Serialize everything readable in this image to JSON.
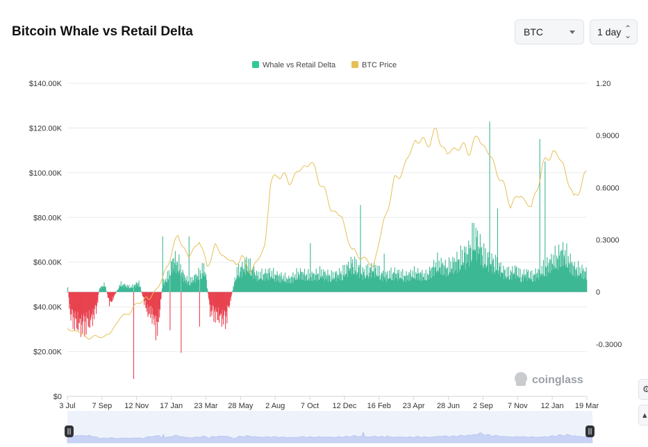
{
  "header": {
    "title": "Bitcoin Whale vs Retail Delta",
    "asset_select": "BTC",
    "interval_select": "1 day"
  },
  "watermark": "coinglass",
  "colors": {
    "positive": "#3cb894",
    "negative": "#e8424f",
    "price_line": "#e6bf57",
    "legend_delta": "#2ecc8f",
    "legend_price": "#e6bf57",
    "grid": "#e9ebee",
    "navigator": "#b9c6f3"
  },
  "chart_data": {
    "type": "bar+line",
    "legend": [
      {
        "name": "Whale vs Retail Delta",
        "color": "#2ecc8f"
      },
      {
        "name": "BTC Price",
        "color": "#e6bf57"
      }
    ],
    "legend_position": "top-center",
    "grid": true,
    "y_left": {
      "ticks": [
        "$0",
        "$20.00K",
        "$40.00K",
        "$60.00K",
        "$80.00K",
        "$100.00K",
        "$120.00K",
        "$140.00K"
      ],
      "range": [
        0,
        140000
      ]
    },
    "y_right": {
      "ticks": [
        "-0.3000",
        "0",
        "0.3000",
        "0.6000",
        "0.9000",
        "1.20"
      ],
      "range": [
        -0.6,
        1.2
      ]
    },
    "x_ticks": [
      "3 Jul",
      "7 Sep",
      "12 Nov",
      "17 Jan",
      "23 Mar",
      "28 May",
      "2 Aug",
      "7 Oct",
      "12 Dec",
      "16 Feb",
      "23 Apr",
      "28 Jun",
      "2 Sep",
      "7 Nov",
      "12 Jan",
      "19 Mar"
    ],
    "delta_series": {
      "name": "Whale vs Retail Delta",
      "anchor_days": [
        0,
        5,
        15,
        30,
        45,
        55,
        60,
        70,
        80,
        100,
        120,
        135,
        150,
        160,
        170,
        180,
        190,
        200,
        210,
        220,
        230,
        250,
        260,
        270,
        280,
        300,
        320,
        340,
        360,
        380,
        400,
        420,
        440,
        460,
        480,
        500,
        520,
        540,
        560,
        580,
        600,
        620,
        640,
        660,
        680,
        700,
        720,
        740,
        760,
        770,
        780,
        790,
        800,
        810,
        820,
        830,
        840,
        850,
        860,
        870,
        880,
        900,
        920,
        940,
        960,
        985
      ],
      "anchor_values": [
        0.03,
        -0.15,
        -0.2,
        -0.22,
        -0.18,
        -0.1,
        0.02,
        0.05,
        -0.08,
        0.05,
        0.03,
        0.06,
        -0.12,
        -0.15,
        -0.25,
        0.05,
        0.1,
        0.2,
        0.18,
        0.1,
        0.06,
        0.12,
        0.15,
        -0.12,
        -0.15,
        -0.18,
        0.12,
        0.18,
        0.1,
        0.12,
        0.1,
        0.08,
        0.12,
        0.1,
        0.12,
        0.1,
        0.12,
        0.18,
        0.12,
        0.15,
        0.1,
        0.12,
        0.1,
        0.12,
        0.1,
        0.18,
        0.15,
        0.2,
        0.25,
        0.35,
        0.3,
        0.22,
        0.2,
        0.18,
        0.15,
        0.12,
        0.12,
        0.14,
        0.1,
        0.12,
        0.1,
        0.14,
        0.2,
        0.25,
        0.15,
        0.12
      ],
      "spikes": [
        {
          "day": 125,
          "value": -0.5
        },
        {
          "day": 180,
          "value": 0.32
        },
        {
          "day": 194,
          "value": -0.22
        },
        {
          "day": 215,
          "value": -0.35
        },
        {
          "day": 230,
          "value": 0.32
        },
        {
          "day": 250,
          "value": -0.2
        },
        {
          "day": 460,
          "value": 0.28
        },
        {
          "day": 555,
          "value": 0.5
        },
        {
          "day": 600,
          "value": 0.22
        },
        {
          "day": 800,
          "value": 0.98
        },
        {
          "day": 815,
          "value": 0.48
        },
        {
          "day": 895,
          "value": 0.88
        },
        {
          "day": 905,
          "value": 0.75
        }
      ]
    },
    "price_series": {
      "name": "BTC Price",
      "anchor_days": [
        0,
        20,
        40,
        60,
        70,
        80,
        100,
        120,
        135,
        150,
        155,
        165,
        180,
        200,
        210,
        230,
        250,
        265,
        280,
        300,
        320,
        330,
        345,
        360,
        375,
        385,
        400,
        420,
        445,
        460,
        480,
        500,
        520,
        540,
        560,
        580,
        600,
        620,
        640,
        660,
        680,
        700,
        720,
        740,
        760,
        780,
        800,
        820,
        840,
        860,
        880,
        900,
        920,
        940,
        960,
        985
      ],
      "anchor_values": [
        30000,
        29000,
        26000,
        27000,
        26500,
        28000,
        35000,
        38000,
        42000,
        44000,
        43000,
        47000,
        52000,
        66000,
        72000,
        62000,
        70000,
        58000,
        67000,
        62000,
        59000,
        63000,
        56000,
        60000,
        68000,
        95000,
        100000,
        96000,
        102000,
        105000,
        96000,
        84000,
        80000,
        65000,
        62000,
        58000,
        78000,
        96000,
        103000,
        115000,
        113000,
        118000,
        108000,
        112000,
        110000,
        116000,
        108000,
        98000,
        86000,
        90000,
        84000,
        102000,
        110000,
        104000,
        88000,
        100000
      ]
    },
    "days_total": 985
  }
}
